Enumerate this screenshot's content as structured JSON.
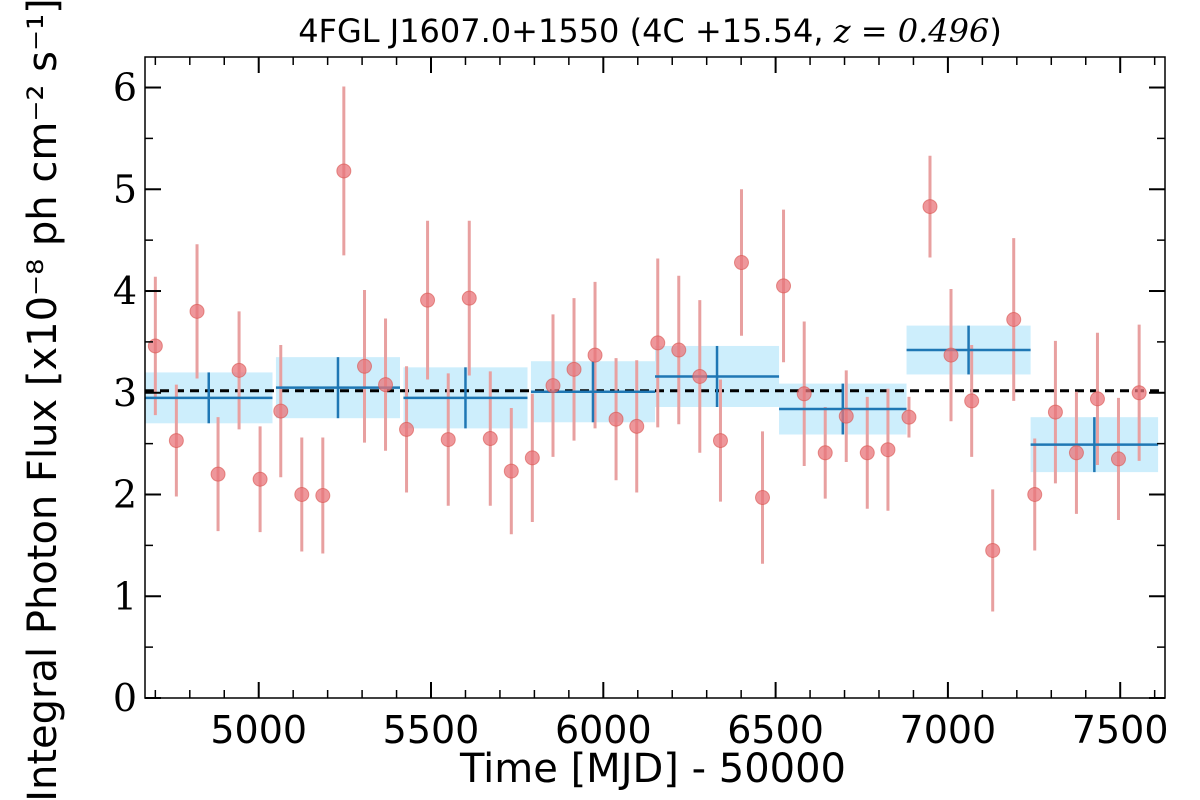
{
  "chart_data": {
    "type": "scatter",
    "title": "4FGL J1607.0+1550 (4C +15.54, z = 0.496)",
    "xlabel": "Time [MJD] - 50000",
    "ylabel": "Integral Photon Flux [x10⁻⁸ ph cm⁻² s⁻¹]",
    "xlim": [
      4670,
      7630
    ],
    "ylim": [
      0,
      6.3
    ],
    "x_ticks": [
      "5000",
      "5500",
      "6000",
      "6500",
      "7000",
      "7500"
    ],
    "y_ticks": [
      "0",
      "1",
      "2",
      "3",
      "4",
      "5",
      "6"
    ],
    "mean_flux": 3.02,
    "colors": {
      "points": "#e8747a",
      "errorbars": "#e8a0a0",
      "bins": "#1f77b4",
      "band": "#cdeefc",
      "mean_line": "#000000"
    },
    "series": [
      {
        "kind": "monthly_points",
        "x": [
          4700,
          4761,
          4821,
          4882,
          4943,
          5004,
          5064,
          5125,
          5186,
          5247,
          5307,
          5368,
          5429,
          5490,
          5550,
          5611,
          5672,
          5733,
          5794,
          5854,
          5915,
          5976,
          6037,
          6097,
          6158,
          6219,
          6280,
          6340,
          6401,
          6462,
          6523,
          6583,
          6644,
          6705,
          6766,
          6826,
          6887,
          6948,
          7009,
          7069,
          7130,
          7191,
          7252,
          7312,
          7373,
          7434,
          7495,
          7555
        ],
        "y": [
          3.46,
          2.53,
          3.8,
          2.2,
          3.22,
          2.15,
          2.82,
          2.0,
          1.99,
          5.18,
          3.26,
          3.08,
          2.64,
          3.91,
          2.54,
          3.93,
          2.55,
          2.23,
          2.36,
          3.07,
          3.23,
          3.37,
          2.74,
          2.67,
          3.49,
          3.42,
          3.16,
          2.53,
          4.28,
          1.97,
          4.05,
          2.99,
          2.41,
          2.77,
          2.41,
          2.44,
          2.76,
          4.83,
          3.37,
          2.92,
          1.45,
          3.72,
          2.0,
          2.81,
          2.41,
          2.94,
          2.35,
          3.0
        ],
        "yerr": [
          0.68,
          0.55,
          0.66,
          0.56,
          0.58,
          0.52,
          0.65,
          0.56,
          0.57,
          0.83,
          0.75,
          0.65,
          0.62,
          0.78,
          0.65,
          0.76,
          0.66,
          0.62,
          0.63,
          0.7,
          0.7,
          0.72,
          0.6,
          0.65,
          0.83,
          0.73,
          0.75,
          0.6,
          0.72,
          0.65,
          0.75,
          0.71,
          0.45,
          0.45,
          0.55,
          0.6,
          0.2,
          0.5,
          0.65,
          0.55,
          0.6,
          0.8,
          0.55,
          0.7,
          0.6,
          0.65,
          0.6,
          0.67
        ]
      },
      {
        "kind": "binned",
        "x_start": [
          4670,
          5050,
          5420,
          5790,
          6150,
          6510,
          6880,
          7240
        ],
        "x_end": [
          5040,
          5410,
          5780,
          6150,
          6510,
          6880,
          7240,
          7610
        ],
        "y": [
          2.95,
          3.05,
          2.95,
          3.01,
          3.16,
          2.84,
          3.42,
          2.49
        ],
        "yerr": [
          0.25,
          0.3,
          0.3,
          0.3,
          0.3,
          0.25,
          0.24,
          0.27
        ]
      }
    ],
    "grid": false,
    "legend": "none"
  }
}
